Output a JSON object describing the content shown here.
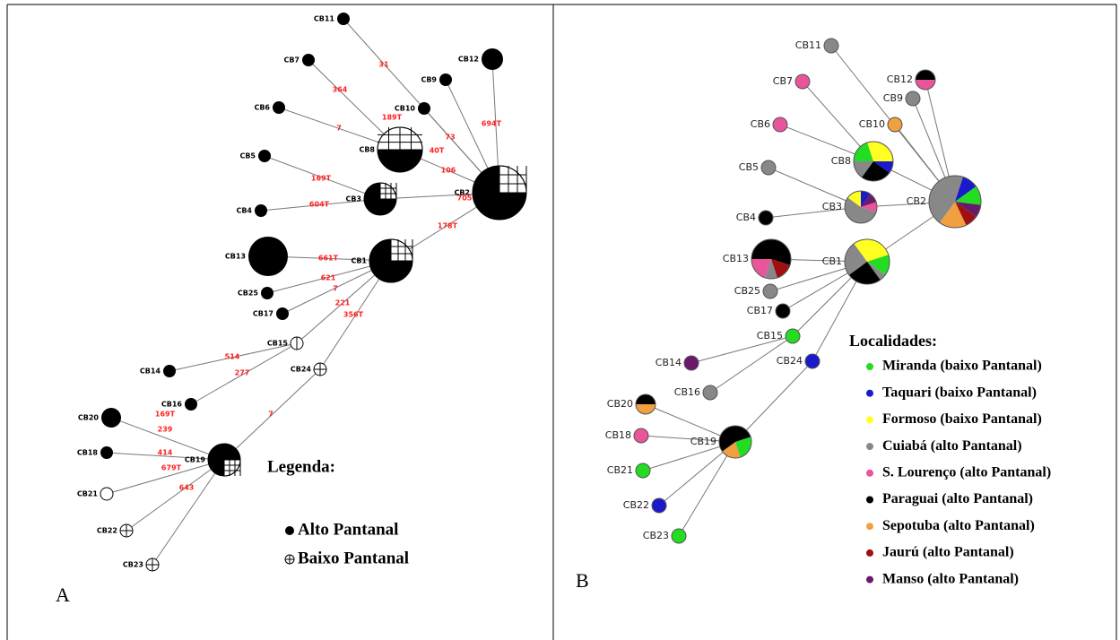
{
  "panel_a": {
    "letter": "A",
    "nodes": [
      "CB11",
      "CB7",
      "CB6",
      "CB5",
      "CB4",
      "CB13",
      "CB25",
      "CB17",
      "CB15",
      "CB14",
      "CB24",
      "CB16",
      "CB20",
      "CB18",
      "CB21",
      "CB22",
      "CB23",
      "CB12",
      "CB9",
      "CB10",
      "CB8",
      "CB3",
      "CB2",
      "CB1",
      "CB19"
    ],
    "edge_labels": [
      "31",
      "364",
      "7",
      "189T",
      "73",
      "40T",
      "694T",
      "106",
      "169T",
      "705",
      "604T",
      "178T",
      "661T",
      "621",
      "7",
      "221",
      "356T",
      "514",
      "277",
      "7",
      "169T",
      "239",
      "414",
      "679T",
      "643"
    ],
    "legend": {
      "title": "Legenda:",
      "items": [
        "Alto Pantanal",
        "Baixo Pantanal"
      ]
    }
  },
  "panel_b": {
    "letter": "B",
    "nodes": [
      "CB11",
      "CB7",
      "CB6",
      "CB5",
      "CB4",
      "CB13",
      "CB25",
      "CB17",
      "CB15",
      "CB14",
      "CB24",
      "CB16",
      "CB20",
      "CB18",
      "CB21",
      "CB22",
      "CB23",
      "CB12",
      "CB9",
      "CB10",
      "CB8",
      "CB3",
      "CB2",
      "CB1",
      "CB19"
    ],
    "legend": {
      "title": "Localidades:",
      "items": [
        {
          "label": "Miranda (baixo Pantanal)",
          "color": "#22dd22"
        },
        {
          "label": "Taquari (baixo Pantanal)",
          "color": "#1a1acc"
        },
        {
          "label": "Formoso (baixo Pantanal)",
          "color": "#ffff22"
        },
        {
          "label": "Cuiabá (alto Pantanal)",
          "color": "#888888"
        },
        {
          "label": "S. Lourenço (alto Pantanal)",
          "color": "#e8559a"
        },
        {
          "label": "Paraguai (alto Pantanal)",
          "color": "#000000"
        },
        {
          "label": "Sepotuba (alto Pantanal)",
          "color": "#f0a040"
        },
        {
          "label": "Jaurú (alto Pantanal)",
          "color": "#a01010"
        },
        {
          "label": "Manso (alto Pantanal)",
          "color": "#6a1a6a"
        }
      ]
    }
  }
}
